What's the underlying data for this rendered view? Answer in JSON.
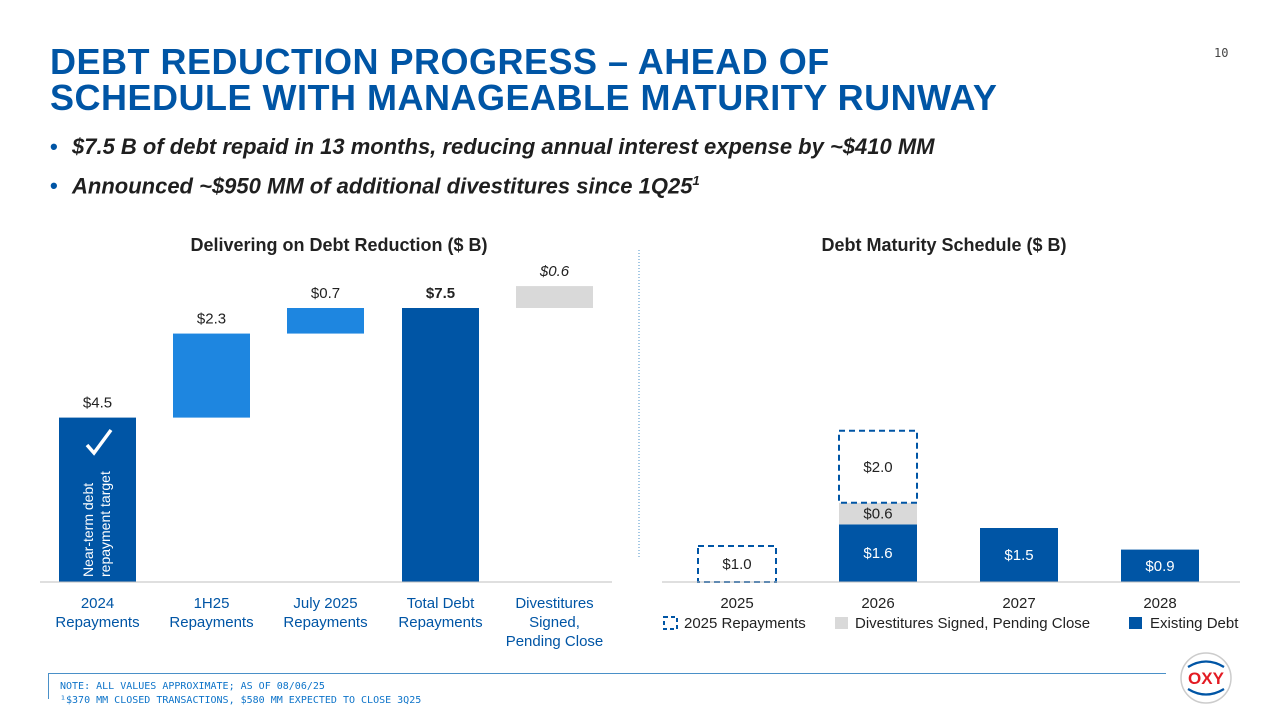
{
  "page_number": "10",
  "title": "DEBT REDUCTION PROGRESS – AHEAD OF SCHEDULE WITH MANAGEABLE MATURITY RUNWAY",
  "bullets": [
    {
      "text": "$7.5 B of debt repaid in 13 months, reducing annual interest expense by ~$410 MM",
      "sup": ""
    },
    {
      "text": "Announced ~$950 MM of additional divestitures since 1Q25",
      "sup": "1"
    }
  ],
  "colors": {
    "dark_blue": "#0055a5",
    "light_blue": "#1e86e0",
    "gray": "#d9d9d9",
    "title_blue": "#0055a5"
  },
  "chart_data": [
    {
      "type": "bar",
      "subtype": "waterfall",
      "title": "Delivering on Debt Reduction ($ B)",
      "categories": [
        "2024\nRepayments",
        "1H25\nRepayments",
        "July 2025\nRepayments",
        "Total Debt\nRepayments",
        "Divestitures\nSigned,\nPending Close"
      ],
      "values": [
        4.5,
        2.3,
        0.7,
        7.5,
        0.6
      ],
      "labels": [
        "$4.5",
        "$2.3",
        "$0.7",
        "$7.5",
        "$0.6"
      ],
      "bar_roles": [
        "total",
        "increment",
        "increment",
        "total",
        "pending"
      ],
      "annotation": "Near-term debt repayment target",
      "ylim": [
        0,
        8.1
      ]
    },
    {
      "type": "bar",
      "subtype": "stacked",
      "title": "Debt Maturity Schedule ($ B)",
      "categories": [
        "2025",
        "2026",
        "2027",
        "2028"
      ],
      "series": [
        {
          "name": "Existing Debt",
          "values": [
            0,
            1.6,
            1.5,
            0.9
          ],
          "labels": [
            "",
            "$1.6",
            "$1.5",
            "$0.9"
          ]
        },
        {
          "name": "Divestitures Signed, Pending Close",
          "values": [
            0,
            0.6,
            0,
            0
          ],
          "labels": [
            "",
            "$0.6",
            "",
            ""
          ]
        },
        {
          "name": "2025 Repayments",
          "values": [
            1.0,
            2.0,
            0,
            0
          ],
          "labels": [
            "$1.0",
            "$2.0",
            "",
            ""
          ]
        }
      ],
      "legend": [
        "2025 Repayments",
        "Divestitures Signed, Pending Close",
        "Existing Debt"
      ],
      "ylim": [
        0,
        4.2
      ]
    }
  ],
  "footer": {
    "note": "NOTE: ALL VALUES APPROXIMATE; AS OF 08/06/25",
    "footnote": "¹$370 MM CLOSED TRANSACTIONS, $580 MM EXPECTED TO CLOSE 3Q25"
  },
  "logo_text": "OXY"
}
